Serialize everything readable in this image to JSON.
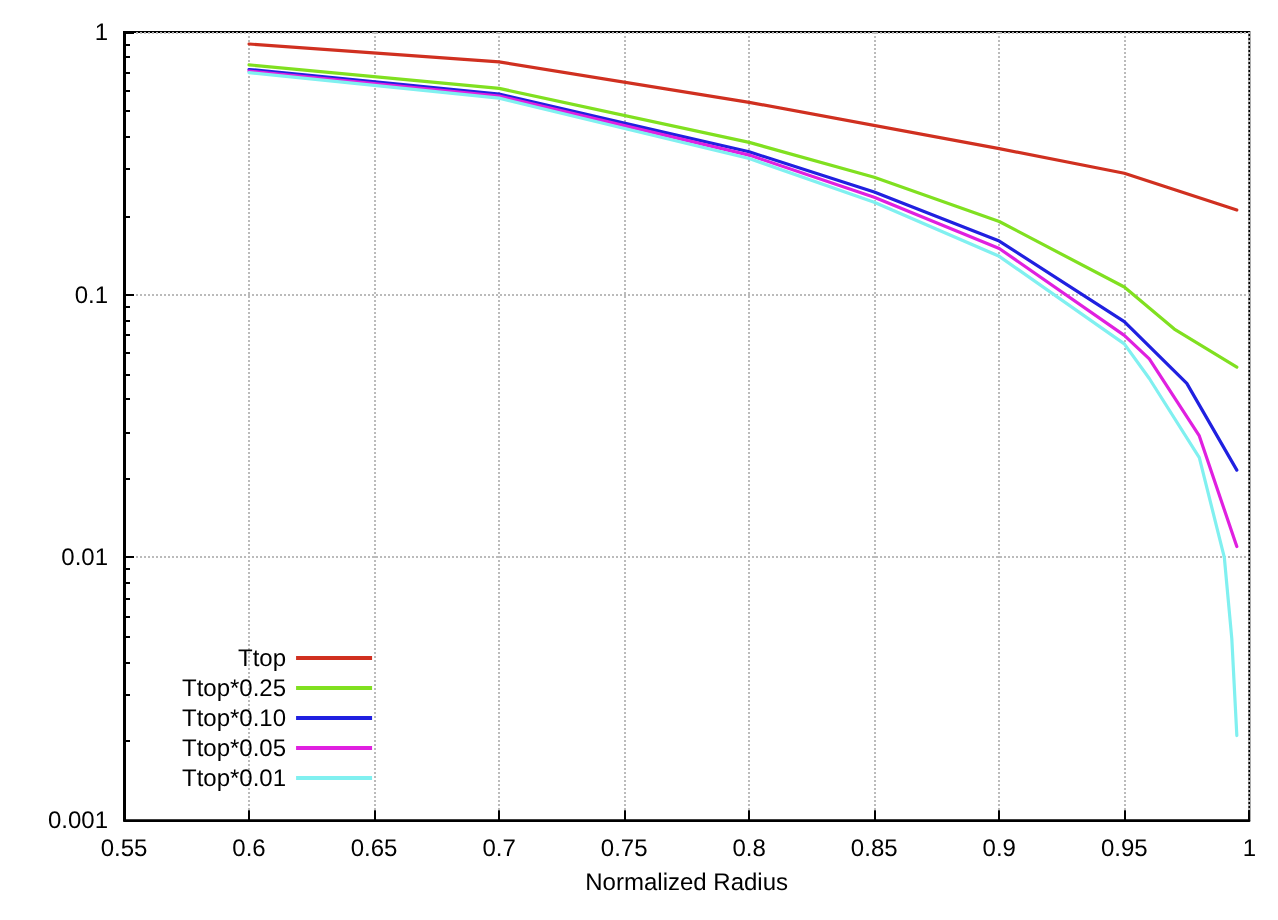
{
  "chart_data": {
    "type": "line",
    "xlabel": "Normalized Radius",
    "log": "y",
    "grid": true,
    "legend": "bottom left",
    "marker": "none",
    "line_style": "solid",
    "xlim": [
      0.55,
      1
    ],
    "xticks": [
      0.55,
      0.6,
      0.65,
      0.7,
      0.75,
      0.8,
      0.85,
      0.9,
      0.95,
      1
    ],
    "ylim": [
      0.001,
      1
    ],
    "yticks": [
      0.001,
      0.01,
      0.1,
      1
    ],
    "series": [
      {
        "name": "Ttop",
        "color": "#d03020",
        "x": [
          0.6,
          0.7,
          0.8,
          0.9,
          0.95,
          0.995
        ],
        "values": [
          0.9,
          0.77,
          0.54,
          0.36,
          0.29,
          0.21
        ]
      },
      {
        "name": "Ttop*0.25",
        "color": "#80e020",
        "x": [
          0.6,
          0.7,
          0.8,
          0.85,
          0.9,
          0.95,
          0.97,
          0.995
        ],
        "values": [
          0.75,
          0.61,
          0.38,
          0.28,
          0.19,
          0.107,
          0.074,
          0.053
        ]
      },
      {
        "name": "Ttop*0.10",
        "color": "#2020e0",
        "x": [
          0.6,
          0.7,
          0.75,
          0.8,
          0.85,
          0.9,
          0.95,
          0.975,
          0.995
        ],
        "values": [
          0.72,
          0.58,
          0.45,
          0.35,
          0.246,
          0.16,
          0.079,
          0.046,
          0.0215
        ]
      },
      {
        "name": "Ttop*0.05",
        "color": "#e020e0",
        "x": [
          0.6,
          0.7,
          0.8,
          0.85,
          0.9,
          0.95,
          0.96,
          0.98,
          0.995
        ],
        "values": [
          0.71,
          0.57,
          0.34,
          0.235,
          0.15,
          0.07,
          0.057,
          0.029,
          0.011
        ]
      },
      {
        "name": "Ttop*0.01",
        "color": "#80f0f0",
        "x": [
          0.6,
          0.7,
          0.8,
          0.85,
          0.9,
          0.95,
          0.96,
          0.98,
          0.99,
          0.993,
          0.995
        ],
        "values": [
          0.7,
          0.56,
          0.33,
          0.225,
          0.14,
          0.065,
          0.048,
          0.024,
          0.01,
          0.0049,
          0.0021
        ]
      }
    ]
  }
}
